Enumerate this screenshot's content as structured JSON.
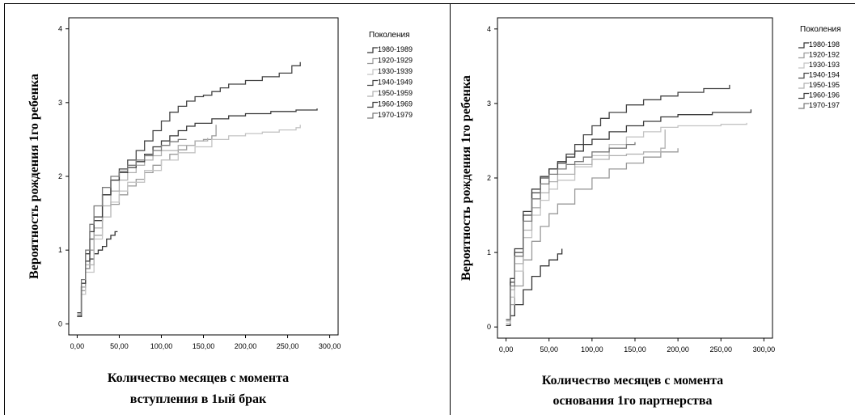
{
  "chart_data": [
    {
      "type": "line",
      "ylabel": "Вероятность рождения 1го ребенка",
      "xlabel_lines": [
        "Количество месяцев с момента",
        "вступления в 1ый брак"
      ],
      "xlim": [
        -10,
        310
      ],
      "ylim": [
        -0.15,
        4.15
      ],
      "x_ticks": [
        0,
        50,
        100,
        150,
        200,
        250,
        300
      ],
      "x_tick_labels": [
        "0,00",
        "50,00",
        "100,00",
        "150,00",
        "200,00",
        "250,00",
        "300,00"
      ],
      "y_ticks": [
        0,
        1,
        2,
        3,
        4
      ],
      "y_tick_labels": [
        "0",
        "1",
        "2",
        "3",
        "4"
      ],
      "legend_title": "Поколения",
      "legend_placement": "right",
      "legend_items": [
        "1980-1989",
        "1920-1929",
        "1930-1939",
        "1940-1949",
        "1950-1959",
        "1960-1969",
        "1970-1979"
      ],
      "series": [
        {
          "name": "1980-1989",
          "color": "#333333",
          "points": [
            [
              0,
              0.15
            ],
            [
              5,
              0.5
            ],
            [
              10,
              0.75
            ],
            [
              15,
              0.88
            ],
            [
              20,
              0.95
            ],
            [
              25,
              1.0
            ],
            [
              30,
              1.05
            ],
            [
              35,
              1.15
            ],
            [
              40,
              1.2
            ],
            [
              45,
              1.25
            ],
            [
              48,
              1.25
            ]
          ]
        },
        {
          "name": "1920-1929",
          "color": "#9a9a9a",
          "points": [
            [
              0,
              0.1
            ],
            [
              5,
              0.45
            ],
            [
              10,
              0.75
            ],
            [
              15,
              1.0
            ],
            [
              20,
              1.2
            ],
            [
              30,
              1.45
            ],
            [
              40,
              1.62
            ],
            [
              50,
              1.75
            ],
            [
              60,
              1.87
            ],
            [
              70,
              1.96
            ],
            [
              80,
              2.05
            ],
            [
              90,
              2.15
            ],
            [
              100,
              2.22
            ],
            [
              110,
              2.3
            ],
            [
              120,
              2.36
            ],
            [
              130,
              2.42
            ],
            [
              140,
              2.48
            ],
            [
              150,
              2.5
            ],
            [
              160,
              2.55
            ],
            [
              165,
              2.7
            ]
          ]
        },
        {
          "name": "1930-1939",
          "color": "#c4c4c4",
          "points": [
            [
              0,
              0.1
            ],
            [
              5,
              0.4
            ],
            [
              10,
              0.7
            ],
            [
              20,
              1.15
            ],
            [
              30,
              1.45
            ],
            [
              40,
              1.65
            ],
            [
              50,
              1.8
            ],
            [
              60,
              1.92
            ],
            [
              80,
              2.08
            ],
            [
              100,
              2.22
            ],
            [
              120,
              2.32
            ],
            [
              140,
              2.4
            ],
            [
              160,
              2.5
            ],
            [
              180,
              2.55
            ],
            [
              200,
              2.58
            ],
            [
              220,
              2.6
            ],
            [
              240,
              2.63
            ],
            [
              260,
              2.66
            ],
            [
              265,
              2.7
            ]
          ]
        },
        {
          "name": "1940-1949",
          "color": "#444444",
          "points": [
            [
              0,
              0.1
            ],
            [
              5,
              0.5
            ],
            [
              10,
              0.85
            ],
            [
              15,
              1.15
            ],
            [
              20,
              1.4
            ],
            [
              30,
              1.75
            ],
            [
              40,
              1.95
            ],
            [
              50,
              2.1
            ],
            [
              60,
              2.22
            ],
            [
              70,
              2.35
            ],
            [
              80,
              2.48
            ],
            [
              90,
              2.62
            ],
            [
              100,
              2.75
            ],
            [
              110,
              2.87
            ],
            [
              120,
              2.95
            ],
            [
              130,
              3.02
            ],
            [
              140,
              3.08
            ],
            [
              150,
              3.1
            ],
            [
              160,
              3.15
            ],
            [
              170,
              3.2
            ],
            [
              180,
              3.25
            ],
            [
              200,
              3.3
            ],
            [
              220,
              3.35
            ],
            [
              240,
              3.4
            ],
            [
              255,
              3.5
            ],
            [
              265,
              3.55
            ]
          ]
        },
        {
          "name": "1950-1959",
          "color": "#b0b0b0",
          "points": [
            [
              0,
              0.12
            ],
            [
              5,
              0.5
            ],
            [
              10,
              0.8
            ],
            [
              20,
              1.3
            ],
            [
              30,
              1.6
            ],
            [
              40,
              1.8
            ],
            [
              50,
              1.95
            ],
            [
              60,
              2.05
            ],
            [
              70,
              2.15
            ],
            [
              80,
              2.22
            ],
            [
              90,
              2.28
            ],
            [
              100,
              2.35
            ],
            [
              120,
              2.42
            ],
            [
              140,
              2.48
            ],
            [
              155,
              2.52
            ]
          ]
        },
        {
          "name": "1960-1969",
          "color": "#3a3a3a",
          "points": [
            [
              0,
              0.1
            ],
            [
              5,
              0.55
            ],
            [
              10,
              0.95
            ],
            [
              15,
              1.25
            ],
            [
              20,
              1.45
            ],
            [
              30,
              1.75
            ],
            [
              40,
              1.95
            ],
            [
              50,
              2.05
            ],
            [
              60,
              2.12
            ],
            [
              70,
              2.2
            ],
            [
              80,
              2.3
            ],
            [
              90,
              2.4
            ],
            [
              100,
              2.48
            ],
            [
              110,
              2.55
            ],
            [
              120,
              2.62
            ],
            [
              130,
              2.68
            ],
            [
              140,
              2.72
            ],
            [
              160,
              2.78
            ],
            [
              180,
              2.82
            ],
            [
              200,
              2.85
            ],
            [
              230,
              2.88
            ],
            [
              260,
              2.9
            ],
            [
              285,
              2.92
            ]
          ]
        },
        {
          "name": "1970-1979",
          "color": "#7a7a7a",
          "points": [
            [
              0,
              0.12
            ],
            [
              5,
              0.6
            ],
            [
              10,
              1.0
            ],
            [
              15,
              1.35
            ],
            [
              20,
              1.6
            ],
            [
              30,
              1.85
            ],
            [
              40,
              2.0
            ],
            [
              50,
              2.07
            ],
            [
              60,
              2.15
            ],
            [
              70,
              2.22
            ],
            [
              80,
              2.28
            ],
            [
              90,
              2.35
            ],
            [
              100,
              2.42
            ],
            [
              110,
              2.47
            ],
            [
              120,
              2.5
            ],
            [
              130,
              2.5
            ]
          ]
        }
      ]
    },
    {
      "type": "line",
      "ylabel": "Вероятность рождения 1го ребенка",
      "xlabel_lines": [
        "Количество месяцев с момента",
        "основания 1го партнерства"
      ],
      "xlim": [
        -10,
        310
      ],
      "ylim": [
        -0.15,
        4.15
      ],
      "x_ticks": [
        0,
        50,
        100,
        150,
        200,
        250,
        300
      ],
      "x_tick_labels": [
        "0,00",
        "50,00",
        "100,00",
        "150,00",
        "200,00",
        "250,00",
        "300,00"
      ],
      "y_ticks": [
        0,
        1,
        2,
        3,
        4
      ],
      "y_tick_labels": [
        "0",
        "1",
        "2",
        "3",
        "4"
      ],
      "legend_title": "Поколения",
      "legend_placement": "right",
      "legend_items": [
        "1980-198",
        "1920-192",
        "1930-193",
        "1940-194",
        "1950-195",
        "1960-196",
        "1970-197"
      ],
      "series": [
        {
          "name": "1980-198",
          "color": "#333333",
          "points": [
            [
              0,
              0.02
            ],
            [
              5,
              0.15
            ],
            [
              10,
              0.3
            ],
            [
              20,
              0.5
            ],
            [
              30,
              0.68
            ],
            [
              40,
              0.82
            ],
            [
              50,
              0.9
            ],
            [
              60,
              0.98
            ],
            [
              65,
              1.05
            ]
          ]
        },
        {
          "name": "1920-192",
          "color": "#9a9a9a",
          "points": [
            [
              0,
              0.05
            ],
            [
              5,
              0.3
            ],
            [
              10,
              0.55
            ],
            [
              20,
              0.9
            ],
            [
              30,
              1.15
            ],
            [
              40,
              1.35
            ],
            [
              50,
              1.52
            ],
            [
              60,
              1.65
            ],
            [
              80,
              1.85
            ],
            [
              100,
              2.0
            ],
            [
              120,
              2.12
            ],
            [
              140,
              2.2
            ],
            [
              160,
              2.28
            ],
            [
              180,
              2.35
            ],
            [
              200,
              2.4
            ]
          ]
        },
        {
          "name": "1930-193",
          "color": "#c4c4c4",
          "points": [
            [
              0,
              0.05
            ],
            [
              5,
              0.4
            ],
            [
              10,
              0.75
            ],
            [
              20,
              1.2
            ],
            [
              30,
              1.5
            ],
            [
              40,
              1.7
            ],
            [
              50,
              1.85
            ],
            [
              60,
              1.97
            ],
            [
              80,
              2.15
            ],
            [
              100,
              2.3
            ],
            [
              120,
              2.45
            ],
            [
              140,
              2.55
            ],
            [
              160,
              2.62
            ],
            [
              180,
              2.68
            ],
            [
              200,
              2.7
            ],
            [
              250,
              2.72
            ],
            [
              280,
              2.74
            ]
          ]
        },
        {
          "name": "1940-194",
          "color": "#444444",
          "points": [
            [
              0,
              0.1
            ],
            [
              5,
              0.6
            ],
            [
              10,
              1.0
            ],
            [
              20,
              1.5
            ],
            [
              30,
              1.8
            ],
            [
              40,
              2.0
            ],
            [
              50,
              2.12
            ],
            [
              60,
              2.22
            ],
            [
              70,
              2.32
            ],
            [
              80,
              2.45
            ],
            [
              90,
              2.58
            ],
            [
              100,
              2.7
            ],
            [
              110,
              2.8
            ],
            [
              120,
              2.88
            ],
            [
              140,
              2.98
            ],
            [
              160,
              3.05
            ],
            [
              180,
              3.1
            ],
            [
              200,
              3.15
            ],
            [
              230,
              3.2
            ],
            [
              260,
              3.25
            ]
          ]
        },
        {
          "name": "1950-195",
          "color": "#b0b0b0",
          "points": [
            [
              0,
              0.08
            ],
            [
              5,
              0.5
            ],
            [
              10,
              0.85
            ],
            [
              20,
              1.3
            ],
            [
              30,
              1.6
            ],
            [
              40,
              1.8
            ],
            [
              50,
              1.95
            ],
            [
              60,
              2.05
            ],
            [
              80,
              2.18
            ],
            [
              100,
              2.25
            ],
            [
              120,
              2.3
            ],
            [
              140,
              2.32
            ],
            [
              160,
              2.35
            ],
            [
              180,
              2.4
            ],
            [
              185,
              2.65
            ]
          ]
        },
        {
          "name": "1960-196",
          "color": "#3a3a3a",
          "points": [
            [
              0,
              0.1
            ],
            [
              5,
              0.65
            ],
            [
              10,
              1.05
            ],
            [
              20,
              1.55
            ],
            [
              30,
              1.85
            ],
            [
              40,
              2.02
            ],
            [
              50,
              2.12
            ],
            [
              60,
              2.2
            ],
            [
              70,
              2.28
            ],
            [
              80,
              2.36
            ],
            [
              90,
              2.45
            ],
            [
              100,
              2.52
            ],
            [
              120,
              2.62
            ],
            [
              140,
              2.7
            ],
            [
              160,
              2.76
            ],
            [
              180,
              2.82
            ],
            [
              200,
              2.85
            ],
            [
              240,
              2.88
            ],
            [
              285,
              2.92
            ]
          ]
        },
        {
          "name": "1970-197",
          "color": "#7a7a7a",
          "points": [
            [
              0,
              0.1
            ],
            [
              5,
              0.55
            ],
            [
              10,
              0.95
            ],
            [
              20,
              1.42
            ],
            [
              30,
              1.72
            ],
            [
              40,
              1.92
            ],
            [
              50,
              2.05
            ],
            [
              60,
              2.12
            ],
            [
              70,
              2.18
            ],
            [
              80,
              2.22
            ],
            [
              90,
              2.28
            ],
            [
              100,
              2.35
            ],
            [
              120,
              2.4
            ],
            [
              140,
              2.45
            ],
            [
              150,
              2.48
            ]
          ]
        }
      ]
    }
  ]
}
